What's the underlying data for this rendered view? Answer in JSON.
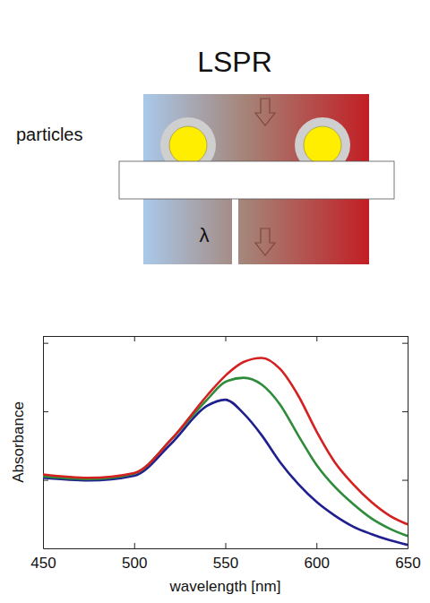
{
  "diagram": {
    "title": "LSPR",
    "label": "particles",
    "symbol": "λ"
  },
  "chart_data": {
    "type": "line",
    "x_label": "wavelength [nm]",
    "y_label": "Absorbance",
    "x": [
      450,
      475,
      500,
      520,
      540,
      550,
      560,
      570,
      580,
      590,
      600,
      610,
      620,
      630,
      640,
      650
    ],
    "series": [
      {
        "color": "#1f1f8f",
        "values": [
          1.03,
          0.99,
          1.06,
          1.52,
          2.08,
          2.17,
          1.97,
          1.65,
          1.26,
          0.94,
          0.68,
          0.48,
          0.32,
          0.21,
          0.12,
          0.05
        ]
      },
      {
        "color": "#2e8b3a",
        "values": [
          1.05,
          1.01,
          1.09,
          1.58,
          2.17,
          2.43,
          2.49,
          2.39,
          2.1,
          1.65,
          1.22,
          0.9,
          0.65,
          0.44,
          0.29,
          0.18
        ]
      },
      {
        "color": "#d42020",
        "values": [
          1.08,
          1.03,
          1.1,
          1.58,
          2.23,
          2.52,
          2.72,
          2.78,
          2.62,
          2.23,
          1.71,
          1.26,
          0.94,
          0.68,
          0.48,
          0.35
        ]
      }
    ],
    "xlim": [
      450,
      650
    ],
    "xticks": [
      450,
      500,
      550,
      600,
      650
    ],
    "ylim": [
      0,
      3.1
    ],
    "yticks": [
      1,
      2,
      3
    ],
    "grid": false,
    "tick_labels": "x"
  }
}
